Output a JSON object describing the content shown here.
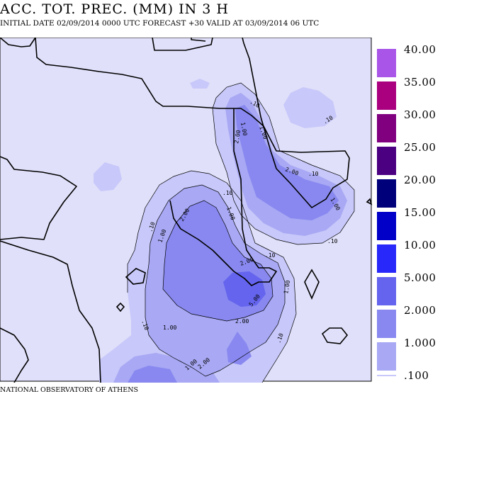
{
  "header": {
    "title": "ACC. TOT. PREC. (MM) IN 3 H",
    "subtitle": "INITIAL DATE 02/09/2014   0000 UTC  FORECAST +30 VALID AT  03/09/2014  06 UTC"
  },
  "footer": {
    "credit": "NATIONAL OBSERVATORY OF ATHENS"
  },
  "colors": {
    "background": "#e0e0fa",
    "frame": "#000000",
    "coast": "#000000"
  },
  "legend": {
    "bins": [
      {
        "label": ".100",
        "color": "#c8c8fa"
      },
      {
        "label": "1.000",
        "color": "#a8a8f4"
      },
      {
        "label": "2.000",
        "color": "#8888f0"
      },
      {
        "label": "5.000",
        "color": "#6464ee"
      },
      {
        "label": "10.00",
        "color": "#2828fa"
      },
      {
        "label": "15.00",
        "color": "#0000c8"
      },
      {
        "label": "20.00",
        "color": "#00007a"
      },
      {
        "label": "25.00",
        "color": "#4b0082"
      },
      {
        "label": "30.00",
        "color": "#800080"
      },
      {
        "label": "35.00",
        "color": "#aa0080"
      },
      {
        "label": "40.00",
        "color": "#a855e8"
      }
    ]
  },
  "map": {
    "contour_labels": [
      ".10",
      "1.00",
      "2.00",
      "5.00"
    ]
  }
}
